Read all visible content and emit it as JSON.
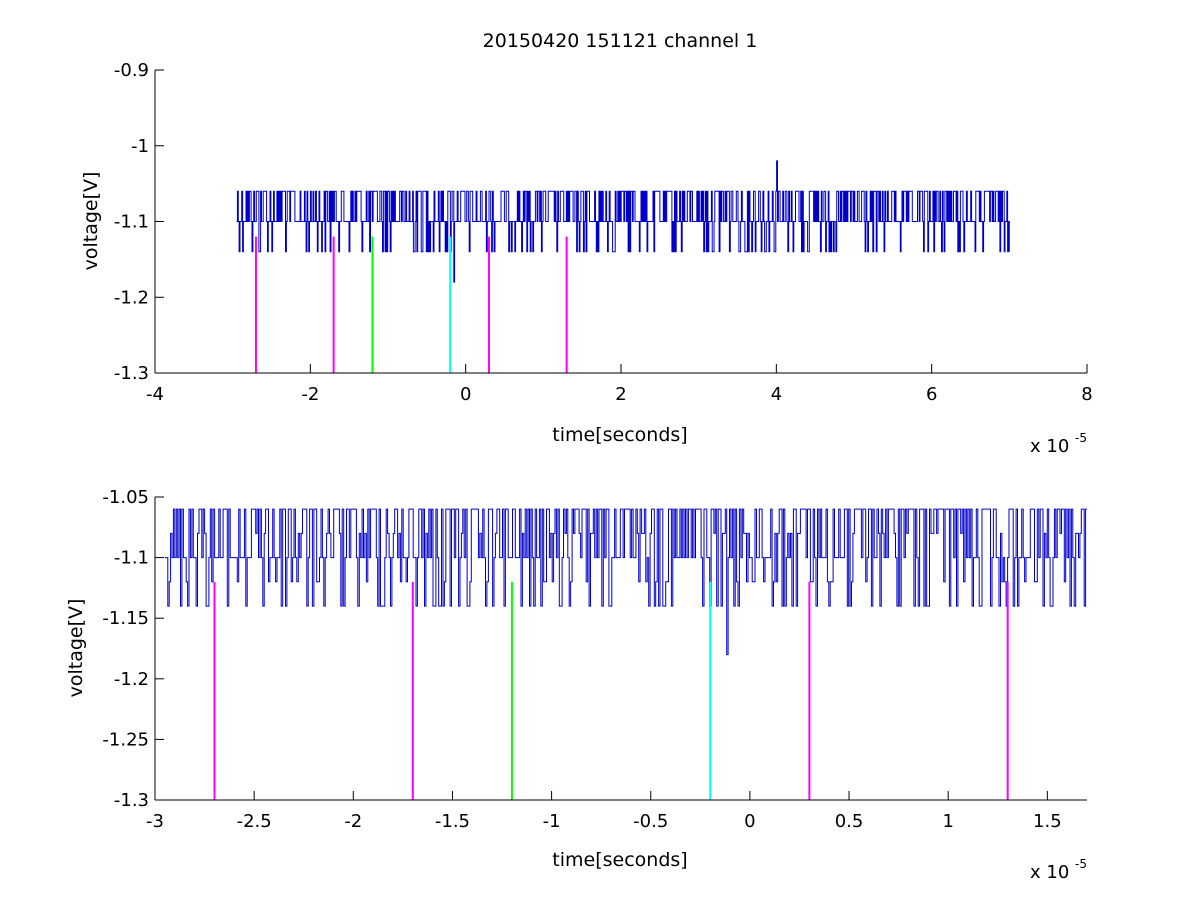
{
  "figure": {
    "title": "20150420 151121 channel 1"
  },
  "colors": {
    "signal": "#0000c8",
    "magenta": "#ff00ff",
    "green": "#00ff00",
    "cyan": "#00ffff",
    "axis": "#000000"
  },
  "chart_data": [
    {
      "type": "line",
      "title": "20150420 151121 channel 1",
      "xlabel": "time[seconds]",
      "ylabel": "voltage[V]",
      "x_exponent_base": "x 10",
      "x_exponent_power": "-5",
      "xlim": [
        -4,
        8
      ],
      "ylim": [
        -1.3,
        -0.9
      ],
      "xticks": [
        -4,
        -2,
        0,
        2,
        4,
        6,
        8
      ],
      "xtick_labels": [
        "-4",
        "-2",
        "0",
        "2",
        "4",
        "6",
        "8"
      ],
      "yticks": [
        -1.3,
        -1.2,
        -1.1,
        -1,
        -0.9
      ],
      "ytick_labels": [
        "-1.3",
        "-1.2",
        "-1.1",
        "-1",
        "-0.9"
      ],
      "signal": {
        "x_range": [
          -2.95,
          7.0
        ],
        "baseline": -1.1,
        "levels": [
          -1.06,
          -1.1,
          -1.14
        ],
        "spikes": [
          {
            "x": 4.0,
            "y": -1.02
          },
          {
            "x": -0.15,
            "y": -1.18
          }
        ]
      },
      "markers": [
        {
          "x": -2.7,
          "color": "magenta",
          "y_top": -1.12,
          "y_bottom": -1.3
        },
        {
          "x": -1.7,
          "color": "magenta",
          "y_top": -1.12,
          "y_bottom": -1.3
        },
        {
          "x": -1.2,
          "color": "green",
          "y_top": -1.12,
          "y_bottom": -1.3
        },
        {
          "x": -0.2,
          "color": "cyan",
          "y_top": -1.12,
          "y_bottom": -1.3
        },
        {
          "x": 0.3,
          "color": "magenta",
          "y_top": -1.12,
          "y_bottom": -1.3
        },
        {
          "x": 1.3,
          "color": "magenta",
          "y_top": -1.12,
          "y_bottom": -1.3
        }
      ],
      "grid": false
    },
    {
      "type": "line",
      "xlabel": "time[seconds]",
      "ylabel": "voltage[V]",
      "x_exponent_base": "x 10",
      "x_exponent_power": "-5",
      "xlim": [
        -3.0,
        1.7
      ],
      "ylim": [
        -1.3,
        -1.05
      ],
      "xticks": [
        -3,
        -2.5,
        -2,
        -1.5,
        -1,
        -0.5,
        0,
        0.5,
        1,
        1.5
      ],
      "xtick_labels": [
        "-3",
        "-2.5",
        "-2",
        "-1.5",
        "-1",
        "-0.5",
        "0",
        "0.5",
        "1",
        "1.5"
      ],
      "yticks": [
        -1.3,
        -1.25,
        -1.2,
        -1.15,
        -1.1,
        -1.05
      ],
      "ytick_labels": [
        "-1.3",
        "-1.25",
        "-1.2",
        "-1.15",
        "-1.1",
        "-1.05"
      ],
      "signal": {
        "x_range": [
          -2.95,
          1.7
        ],
        "baseline": -1.1,
        "levels": [
          -1.06,
          -1.08,
          -1.1,
          -1.12,
          -1.14
        ],
        "spikes": [
          {
            "x": -0.12,
            "y": -1.18
          }
        ]
      },
      "markers": [
        {
          "x": -2.7,
          "color": "magenta",
          "y_top": -1.12,
          "y_bottom": -1.3
        },
        {
          "x": -1.7,
          "color": "magenta",
          "y_top": -1.12,
          "y_bottom": -1.3
        },
        {
          "x": -1.2,
          "color": "green",
          "y_top": -1.12,
          "y_bottom": -1.3
        },
        {
          "x": -0.2,
          "color": "cyan",
          "y_top": -1.12,
          "y_bottom": -1.3
        },
        {
          "x": 0.3,
          "color": "magenta",
          "y_top": -1.12,
          "y_bottom": -1.3
        },
        {
          "x": 1.3,
          "color": "magenta",
          "y_top": -1.12,
          "y_bottom": -1.3
        }
      ],
      "grid": false
    }
  ]
}
